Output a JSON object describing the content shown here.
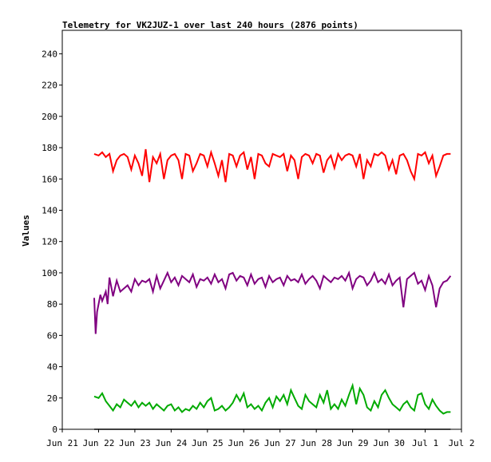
{
  "chart_data": {
    "type": "line",
    "title": "Telemetry for VK2JUZ-1 over last 240 hours (2876 points)",
    "ylabel": "Values",
    "xlabel": "",
    "ylim": [
      0,
      255
    ],
    "xlim": [
      0,
      11
    ],
    "yticks": [
      0,
      20,
      40,
      60,
      80,
      100,
      120,
      140,
      160,
      180,
      200,
      220,
      240
    ],
    "xticks": [
      {
        "pos": 0,
        "label": "Jun 21"
      },
      {
        "pos": 1,
        "label": "Jun 22"
      },
      {
        "pos": 2,
        "label": "Jun 23"
      },
      {
        "pos": 3,
        "label": "Jun 24"
      },
      {
        "pos": 4,
        "label": "Jun 25"
      },
      {
        "pos": 5,
        "label": "Jun 26"
      },
      {
        "pos": 6,
        "label": "Jun 27"
      },
      {
        "pos": 7,
        "label": "Jun 28"
      },
      {
        "pos": 8,
        "label": "Jun 29"
      },
      {
        "pos": 9,
        "label": "Jun 30"
      },
      {
        "pos": 10,
        "label": "Jul 1"
      },
      {
        "pos": 11,
        "label": "Jul 2"
      }
    ],
    "grid": false,
    "series": [
      {
        "color": "#ff0000",
        "x": [
          0.88,
          1.0,
          1.1,
          1.2,
          1.3,
          1.4,
          1.5,
          1.6,
          1.7,
          1.8,
          1.9,
          2.0,
          2.1,
          2.2,
          2.3,
          2.4,
          2.5,
          2.6,
          2.7,
          2.8,
          2.9,
          3.0,
          3.1,
          3.2,
          3.3,
          3.4,
          3.5,
          3.6,
          3.7,
          3.8,
          3.9,
          4.0,
          4.1,
          4.2,
          4.3,
          4.4,
          4.5,
          4.6,
          4.7,
          4.8,
          4.9,
          5.0,
          5.1,
          5.2,
          5.3,
          5.4,
          5.5,
          5.6,
          5.7,
          5.8,
          5.9,
          6.0,
          6.1,
          6.2,
          6.3,
          6.4,
          6.5,
          6.6,
          6.7,
          6.8,
          6.9,
          7.0,
          7.1,
          7.2,
          7.3,
          7.4,
          7.5,
          7.6,
          7.7,
          7.8,
          7.9,
          8.0,
          8.1,
          8.2,
          8.3,
          8.4,
          8.5,
          8.6,
          8.7,
          8.8,
          8.9,
          9.0,
          9.1,
          9.2,
          9.3,
          9.4,
          9.5,
          9.6,
          9.7,
          9.8,
          9.9,
          10.0,
          10.1,
          10.2,
          10.3,
          10.4,
          10.5,
          10.6,
          10.7
        ],
        "values": [
          176,
          175,
          177,
          174,
          176,
          165,
          172,
          175,
          176,
          174,
          166,
          175,
          170,
          162,
          179,
          158,
          174,
          170,
          176,
          160,
          172,
          175,
          176,
          172,
          160,
          176,
          175,
          165,
          170,
          176,
          175,
          168,
          177,
          170,
          162,
          172,
          158,
          176,
          175,
          168,
          175,
          177,
          166,
          174,
          160,
          176,
          175,
          170,
          168,
          176,
          175,
          174,
          176,
          165,
          175,
          172,
          160,
          174,
          176,
          175,
          170,
          176,
          175,
          164,
          172,
          175,
          167,
          176,
          172,
          175,
          176,
          175,
          168,
          176,
          160,
          172,
          168,
          176,
          175,
          177,
          175,
          166,
          172,
          163,
          175,
          176,
          172,
          165,
          160,
          176,
          175,
          177,
          170,
          175,
          162,
          168,
          175,
          176,
          176
        ]
      },
      {
        "color": "#800080",
        "x": [
          0.88,
          0.92,
          0.96,
          1.0,
          1.05,
          1.1,
          1.15,
          1.2,
          1.25,
          1.3,
          1.4,
          1.5,
          1.6,
          1.7,
          1.8,
          1.9,
          2.0,
          2.1,
          2.2,
          2.3,
          2.4,
          2.5,
          2.6,
          2.7,
          2.8,
          2.9,
          3.0,
          3.1,
          3.2,
          3.3,
          3.4,
          3.5,
          3.6,
          3.7,
          3.8,
          3.9,
          4.0,
          4.1,
          4.2,
          4.3,
          4.4,
          4.5,
          4.6,
          4.7,
          4.8,
          4.9,
          5.0,
          5.1,
          5.2,
          5.3,
          5.4,
          5.5,
          5.6,
          5.7,
          5.8,
          5.9,
          6.0,
          6.1,
          6.2,
          6.3,
          6.4,
          6.5,
          6.6,
          6.7,
          6.8,
          6.9,
          7.0,
          7.1,
          7.2,
          7.3,
          7.4,
          7.5,
          7.6,
          7.7,
          7.8,
          7.9,
          8.0,
          8.1,
          8.2,
          8.3,
          8.4,
          8.5,
          8.6,
          8.7,
          8.8,
          8.9,
          9.0,
          9.1,
          9.2,
          9.3,
          9.4,
          9.5,
          9.6,
          9.7,
          9.8,
          9.9,
          10.0,
          10.1,
          10.2,
          10.3,
          10.4,
          10.5,
          10.6,
          10.7
        ],
        "values": [
          84,
          61,
          75,
          80,
          86,
          82,
          85,
          88,
          80,
          97,
          85,
          95,
          88,
          90,
          92,
          88,
          96,
          92,
          95,
          94,
          96,
          88,
          98,
          90,
          95,
          100,
          94,
          97,
          92,
          98,
          96,
          94,
          99,
          91,
          96,
          95,
          97,
          93,
          99,
          94,
          96,
          90,
          99,
          100,
          95,
          98,
          97,
          92,
          99,
          93,
          96,
          97,
          91,
          98,
          94,
          96,
          97,
          92,
          98,
          95,
          96,
          94,
          99,
          93,
          96,
          98,
          95,
          90,
          98,
          96,
          94,
          97,
          96,
          98,
          95,
          100,
          90,
          96,
          98,
          97,
          92,
          95,
          100,
          94,
          96,
          93,
          99,
          92,
          95,
          97,
          78,
          96,
          98,
          100,
          93,
          95,
          89,
          98,
          92,
          78,
          90,
          94,
          95,
          98
        ]
      },
      {
        "color": "#00aa00",
        "x": [
          0.88,
          1.0,
          1.1,
          1.2,
          1.3,
          1.4,
          1.5,
          1.6,
          1.7,
          1.8,
          1.9,
          2.0,
          2.1,
          2.2,
          2.3,
          2.4,
          2.5,
          2.6,
          2.7,
          2.8,
          2.9,
          3.0,
          3.1,
          3.2,
          3.3,
          3.4,
          3.5,
          3.6,
          3.7,
          3.8,
          3.9,
          4.0,
          4.1,
          4.2,
          4.3,
          4.4,
          4.5,
          4.6,
          4.7,
          4.8,
          4.9,
          5.0,
          5.1,
          5.2,
          5.3,
          5.4,
          5.5,
          5.6,
          5.7,
          5.8,
          5.9,
          6.0,
          6.1,
          6.2,
          6.3,
          6.4,
          6.5,
          6.6,
          6.7,
          6.8,
          6.9,
          7.0,
          7.1,
          7.2,
          7.3,
          7.4,
          7.5,
          7.6,
          7.7,
          7.8,
          7.9,
          8.0,
          8.1,
          8.2,
          8.3,
          8.4,
          8.5,
          8.6,
          8.7,
          8.8,
          8.9,
          9.0,
          9.1,
          9.2,
          9.3,
          9.4,
          9.5,
          9.6,
          9.7,
          9.8,
          9.9,
          10.0,
          10.1,
          10.2,
          10.3,
          10.4,
          10.5,
          10.6,
          10.7
        ],
        "values": [
          21,
          20,
          23,
          18,
          15,
          12,
          16,
          14,
          19,
          17,
          15,
          18,
          14,
          17,
          15,
          17,
          13,
          16,
          14,
          12,
          15,
          16,
          12,
          14,
          11,
          13,
          12,
          15,
          13,
          17,
          14,
          18,
          20,
          12,
          13,
          15,
          12,
          14,
          17,
          22,
          18,
          23,
          14,
          16,
          13,
          15,
          12,
          17,
          20,
          14,
          21,
          18,
          22,
          16,
          25,
          20,
          15,
          13,
          22,
          18,
          16,
          14,
          22,
          17,
          25,
          13,
          16,
          13,
          19,
          15,
          22,
          28,
          16,
          26,
          22,
          14,
          12,
          18,
          14,
          22,
          25,
          20,
          16,
          14,
          12,
          16,
          18,
          14,
          12,
          22,
          23,
          16,
          13,
          19,
          15,
          12,
          10,
          11,
          11
        ]
      },
      {
        "color": "#000000",
        "x": [
          0.88,
          10.7
        ],
        "values": [
          0,
          0
        ]
      }
    ]
  }
}
